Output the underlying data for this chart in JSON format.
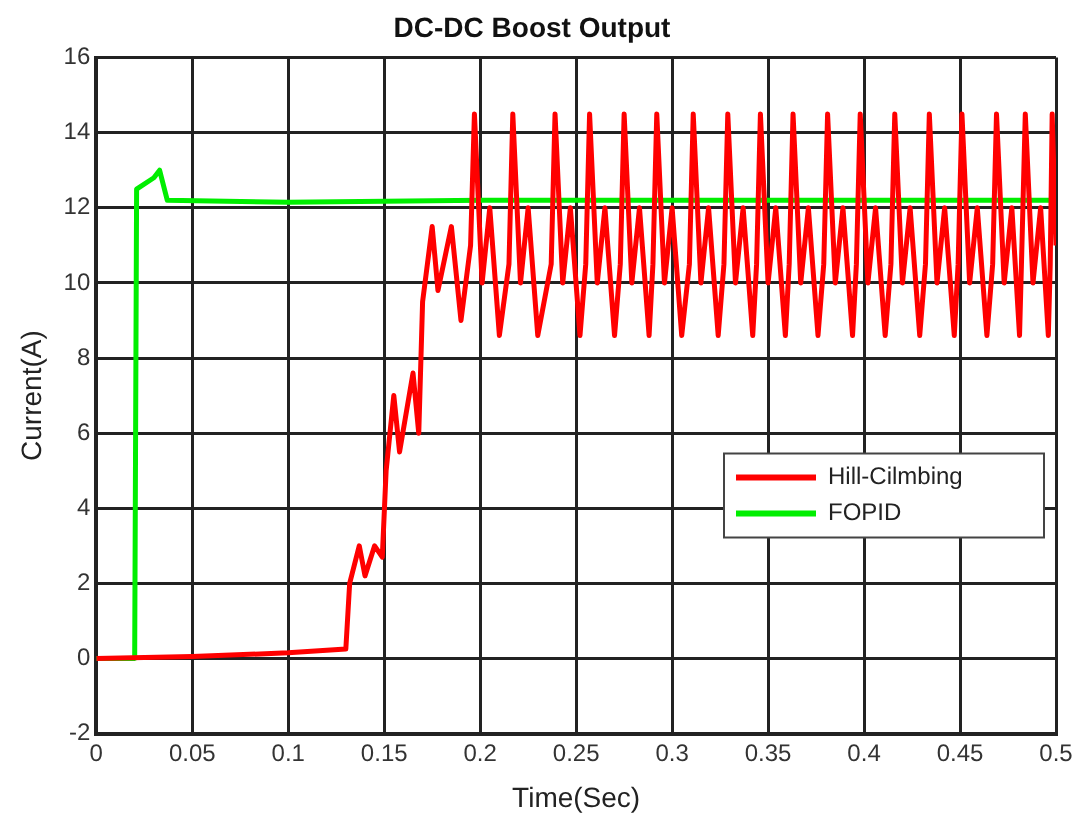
{
  "chart_data": {
    "type": "line",
    "title": "DC-DC Boost Output",
    "xlabel": "Time(Sec)",
    "ylabel": "Current(A)",
    "xlim": [
      0,
      0.5
    ],
    "xticks": [
      0,
      0.05,
      0.1,
      0.15,
      0.2,
      0.25,
      0.3,
      0.35,
      0.4,
      0.45,
      0.5
    ],
    "ylim": [
      -2,
      16
    ],
    "yticks": [
      -2,
      0,
      2,
      4,
      6,
      8,
      10,
      12,
      14,
      16
    ],
    "grid": true,
    "legend": "right",
    "marker": "none",
    "line_style": "solid",
    "series": [
      {
        "name": "Hill-Cilmbing",
        "color": "#ff0000",
        "x": [
          0,
          0.05,
          0.1,
          0.13,
          0.132,
          0.137,
          0.14,
          0.145,
          0.149,
          0.151,
          0.155,
          0.158,
          0.165,
          0.168,
          0.17,
          0.175,
          0.178,
          0.185,
          0.19,
          0.195,
          0.197,
          0.201,
          0.205,
          0.21,
          0.215,
          0.217,
          0.221,
          0.225,
          0.23,
          0.237,
          0.239,
          0.243,
          0.247,
          0.252,
          0.255,
          0.257,
          0.261,
          0.265,
          0.27,
          0.273,
          0.275,
          0.279,
          0.283,
          0.288,
          0.29,
          0.292,
          0.296,
          0.3,
          0.305,
          0.309,
          0.311,
          0.315,
          0.319,
          0.324,
          0.327,
          0.329,
          0.333,
          0.337,
          0.342,
          0.344,
          0.346,
          0.35,
          0.354,
          0.359,
          0.361,
          0.363,
          0.367,
          0.371,
          0.376,
          0.379,
          0.381,
          0.385,
          0.389,
          0.394,
          0.396,
          0.398,
          0.402,
          0.406,
          0.411,
          0.414,
          0.416,
          0.42,
          0.424,
          0.429,
          0.432,
          0.434,
          0.438,
          0.442,
          0.447,
          0.449,
          0.451,
          0.455,
          0.459,
          0.464,
          0.467,
          0.469,
          0.473,
          0.477,
          0.481,
          0.482,
          0.484,
          0.488,
          0.492,
          0.496,
          0.497,
          0.498,
          0.5
        ],
        "values": [
          0,
          0.05,
          0.15,
          0.25,
          2,
          3,
          2.2,
          3,
          2.7,
          5,
          7,
          5.5,
          7.6,
          6,
          9.5,
          11.5,
          9.8,
          11.5,
          9,
          11,
          14.5,
          10,
          12,
          8.6,
          10.5,
          14.5,
          10,
          12,
          8.6,
          10.5,
          14.5,
          10,
          12,
          8.6,
          10.5,
          14.5,
          10,
          12,
          8.6,
          10.5,
          14.5,
          10,
          12,
          8.6,
          10.5,
          14.5,
          10,
          12,
          8.6,
          10.5,
          14.5,
          10,
          12,
          8.6,
          10.5,
          14.5,
          10,
          12,
          8.6,
          10.5,
          14.5,
          10,
          12,
          8.6,
          10.5,
          14.5,
          10,
          12,
          8.6,
          10.5,
          14.5,
          10,
          12,
          8.6,
          10.5,
          14.5,
          10,
          12,
          8.6,
          10.5,
          14.5,
          10,
          12,
          8.6,
          10.5,
          14.5,
          10,
          12,
          8.6,
          10.5,
          14.5,
          10,
          12,
          8.6,
          10.5,
          14.5,
          10,
          12,
          8.6,
          10.5,
          14.5,
          10,
          12,
          8.6,
          10.5,
          14.5,
          11
        ]
      },
      {
        "name": "FOPID",
        "color": "#00ee00",
        "x": [
          0,
          0.02,
          0.021,
          0.03,
          0.033,
          0.037,
          0.1,
          0.2,
          0.3,
          0.4,
          0.5
        ],
        "values": [
          0,
          0,
          12.5,
          12.8,
          13,
          12.2,
          12.15,
          12.2,
          12.2,
          12.2,
          12.2
        ]
      }
    ]
  }
}
